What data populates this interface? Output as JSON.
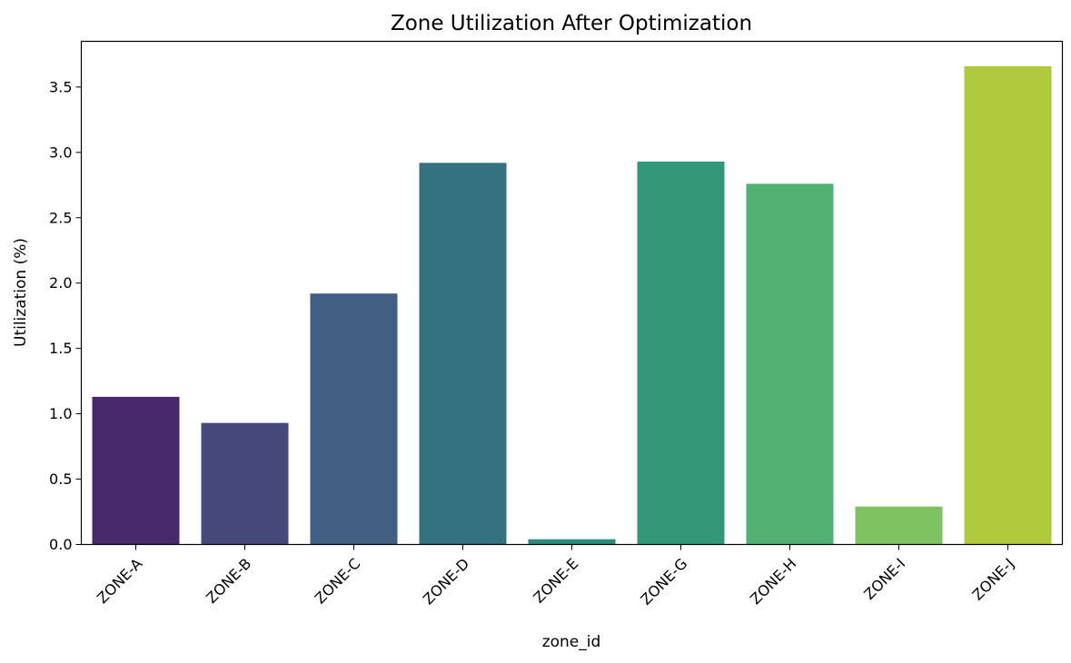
{
  "chart_data": {
    "type": "bar",
    "title": "Zone Utilization After Optimization",
    "xlabel": "zone_id",
    "ylabel": "Utilization (%)",
    "categories": [
      "ZONE-A",
      "ZONE-B",
      "ZONE-C",
      "ZONE-D",
      "ZONE-E",
      "ZONE-G",
      "ZONE-H",
      "ZONE-I",
      "ZONE-J"
    ],
    "values": [
      1.13,
      0.93,
      1.92,
      2.92,
      0.04,
      2.93,
      2.76,
      0.29,
      3.66
    ],
    "colors": [
      "#482a6b",
      "#46477a",
      "#405f83",
      "#357280",
      "#2f8a7e",
      "#33987a",
      "#52b073",
      "#7ec261",
      "#afca3c"
    ],
    "ylim": [
      0,
      3.85
    ],
    "yticks": [
      "0.0",
      "0.5",
      "1.0",
      "1.5",
      "2.0",
      "2.5",
      "3.0",
      "3.5"
    ],
    "grid": false,
    "legend": "none"
  }
}
